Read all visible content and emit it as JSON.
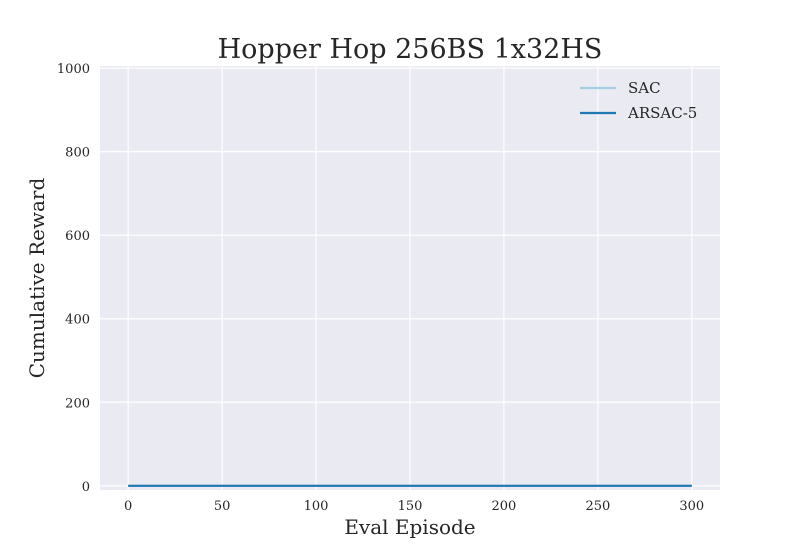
{
  "chart_data": {
    "type": "line",
    "title": "Hopper Hop 256BS 1x32HS",
    "xlabel": "Eval Episode",
    "ylabel": "Cumulative Reward",
    "xlim": [
      -15,
      315
    ],
    "ylim": [
      -10,
      1005
    ],
    "xticks": [
      0,
      50,
      100,
      150,
      200,
      250,
      300
    ],
    "yticks": [
      0,
      200,
      400,
      600,
      800,
      1000
    ],
    "grid": true,
    "legend_position": "top-right",
    "series": [
      {
        "name": "SAC",
        "color": "#a6cee3",
        "x": [
          0,
          300
        ],
        "y": [
          0,
          0
        ]
      },
      {
        "name": "ARSAC-5",
        "color": "#1f78b4",
        "x": [
          0,
          300
        ],
        "y": [
          0,
          0
        ]
      }
    ]
  }
}
